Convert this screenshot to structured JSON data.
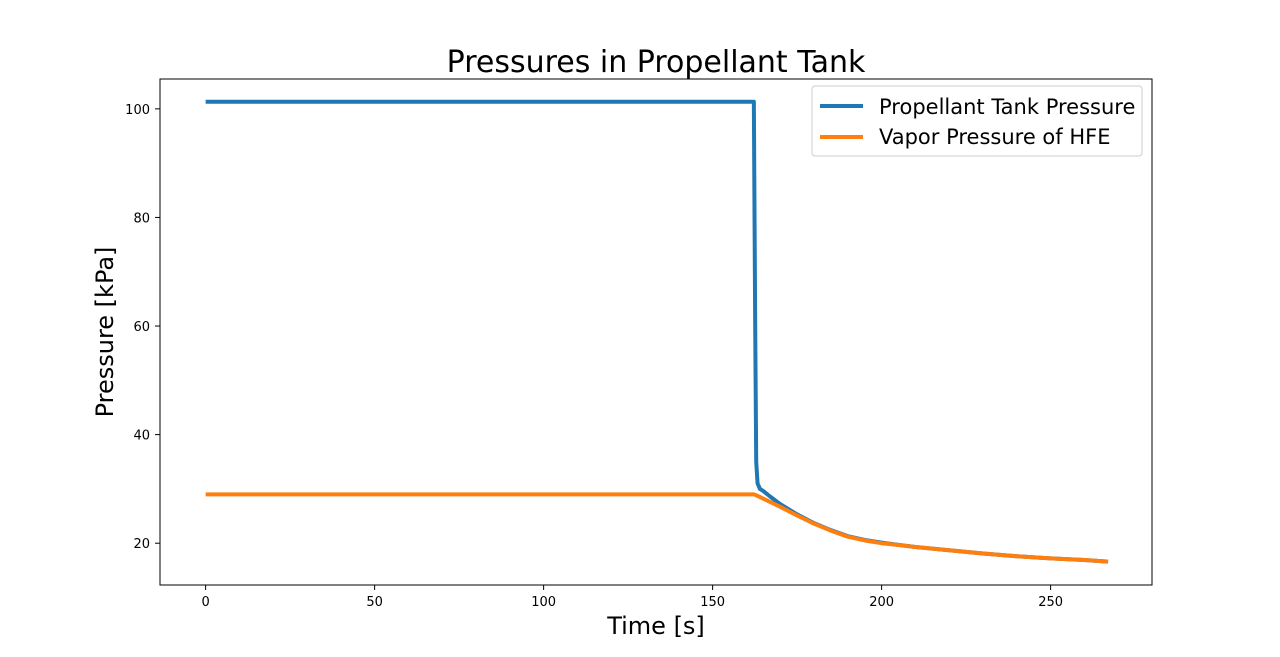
{
  "chart_data": {
    "type": "line",
    "title": "Pressures in Propellant Tank",
    "xlabel": "Time [s]",
    "ylabel": "Pressure [kPa]",
    "xlim": [
      -13.5,
      280
    ],
    "ylim": [
      12.3,
      105.5
    ],
    "xticks": [
      0,
      50,
      100,
      150,
      200,
      250
    ],
    "yticks": [
      20,
      40,
      60,
      80,
      100
    ],
    "grid": false,
    "legend_position": "top-right",
    "series": [
      {
        "name": "Propellant Tank Pressure",
        "color": "#1f77b4",
        "x": [
          0,
          162.2,
          162.6,
          162.9,
          163.3,
          164,
          165,
          167,
          170,
          175,
          180,
          185,
          190,
          195,
          200,
          210,
          220,
          230,
          240,
          250,
          260,
          267
        ],
        "y": [
          101.3,
          101.3,
          60,
          35,
          31,
          30,
          29.6,
          28.6,
          27.2,
          25.3,
          23.7,
          22.4,
          21.3,
          20.6,
          20.1,
          19.3,
          18.7,
          18.1,
          17.6,
          17.2,
          16.9,
          16.6
        ]
      },
      {
        "name": "Vapor Pressure of HFE",
        "color": "#ff7f0e",
        "x": [
          0,
          162.2,
          163,
          165,
          170,
          175,
          180,
          185,
          190,
          195,
          200,
          210,
          220,
          230,
          240,
          250,
          260,
          267
        ],
        "y": [
          29,
          29,
          28.8,
          28.2,
          26.7,
          25.1,
          23.6,
          22.3,
          21.2,
          20.5,
          20,
          19.3,
          18.7,
          18.1,
          17.6,
          17.2,
          16.9,
          16.6
        ]
      }
    ]
  }
}
